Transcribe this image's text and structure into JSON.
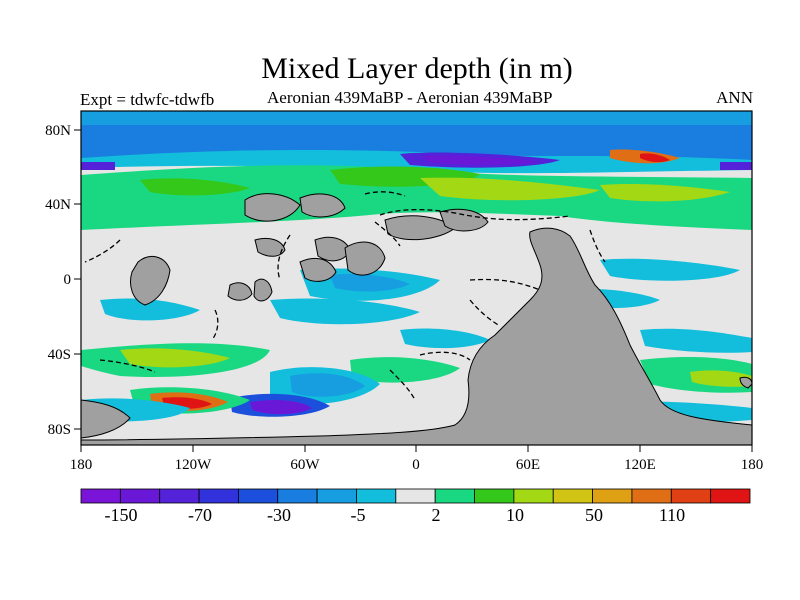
{
  "title": "Mixed Layer depth (in m)",
  "left_string": "Expt = tdwfc-tdwfb",
  "center_string": "Aeronian 439MaBP - Aeronian 439MaBP",
  "right_string": "ANN",
  "chart_data": {
    "type": "heatmap",
    "variable": "Mixed Layer depth",
    "units": "m",
    "lon_range": [
      -180,
      180
    ],
    "lat_range": [
      -90,
      90
    ],
    "x_ticks": [
      "180",
      "120W",
      "60W",
      "0",
      "60E",
      "120E",
      "180"
    ],
    "y_ticks": [
      "80N",
      "40N",
      "0",
      "40S",
      "80S"
    ],
    "colorbar": {
      "labels": [
        "-150",
        "-70",
        "-30",
        "-5",
        "2",
        "10",
        "50",
        "110"
      ],
      "colors": [
        "#7a14d8",
        "#6a18d8",
        "#5422d8",
        "#3232dc",
        "#1c50dc",
        "#1a7ee0",
        "#169ee0",
        "#12bedc",
        "#e6e6e6",
        "#1ad882",
        "#34c81a",
        "#a2d814",
        "#d2c414",
        "#e0a014",
        "#e06e14",
        "#e04014",
        "#e01414"
      ]
    },
    "land_color": "#a0a0a0",
    "ocean_neutral_color": "#e6e6e6"
  }
}
